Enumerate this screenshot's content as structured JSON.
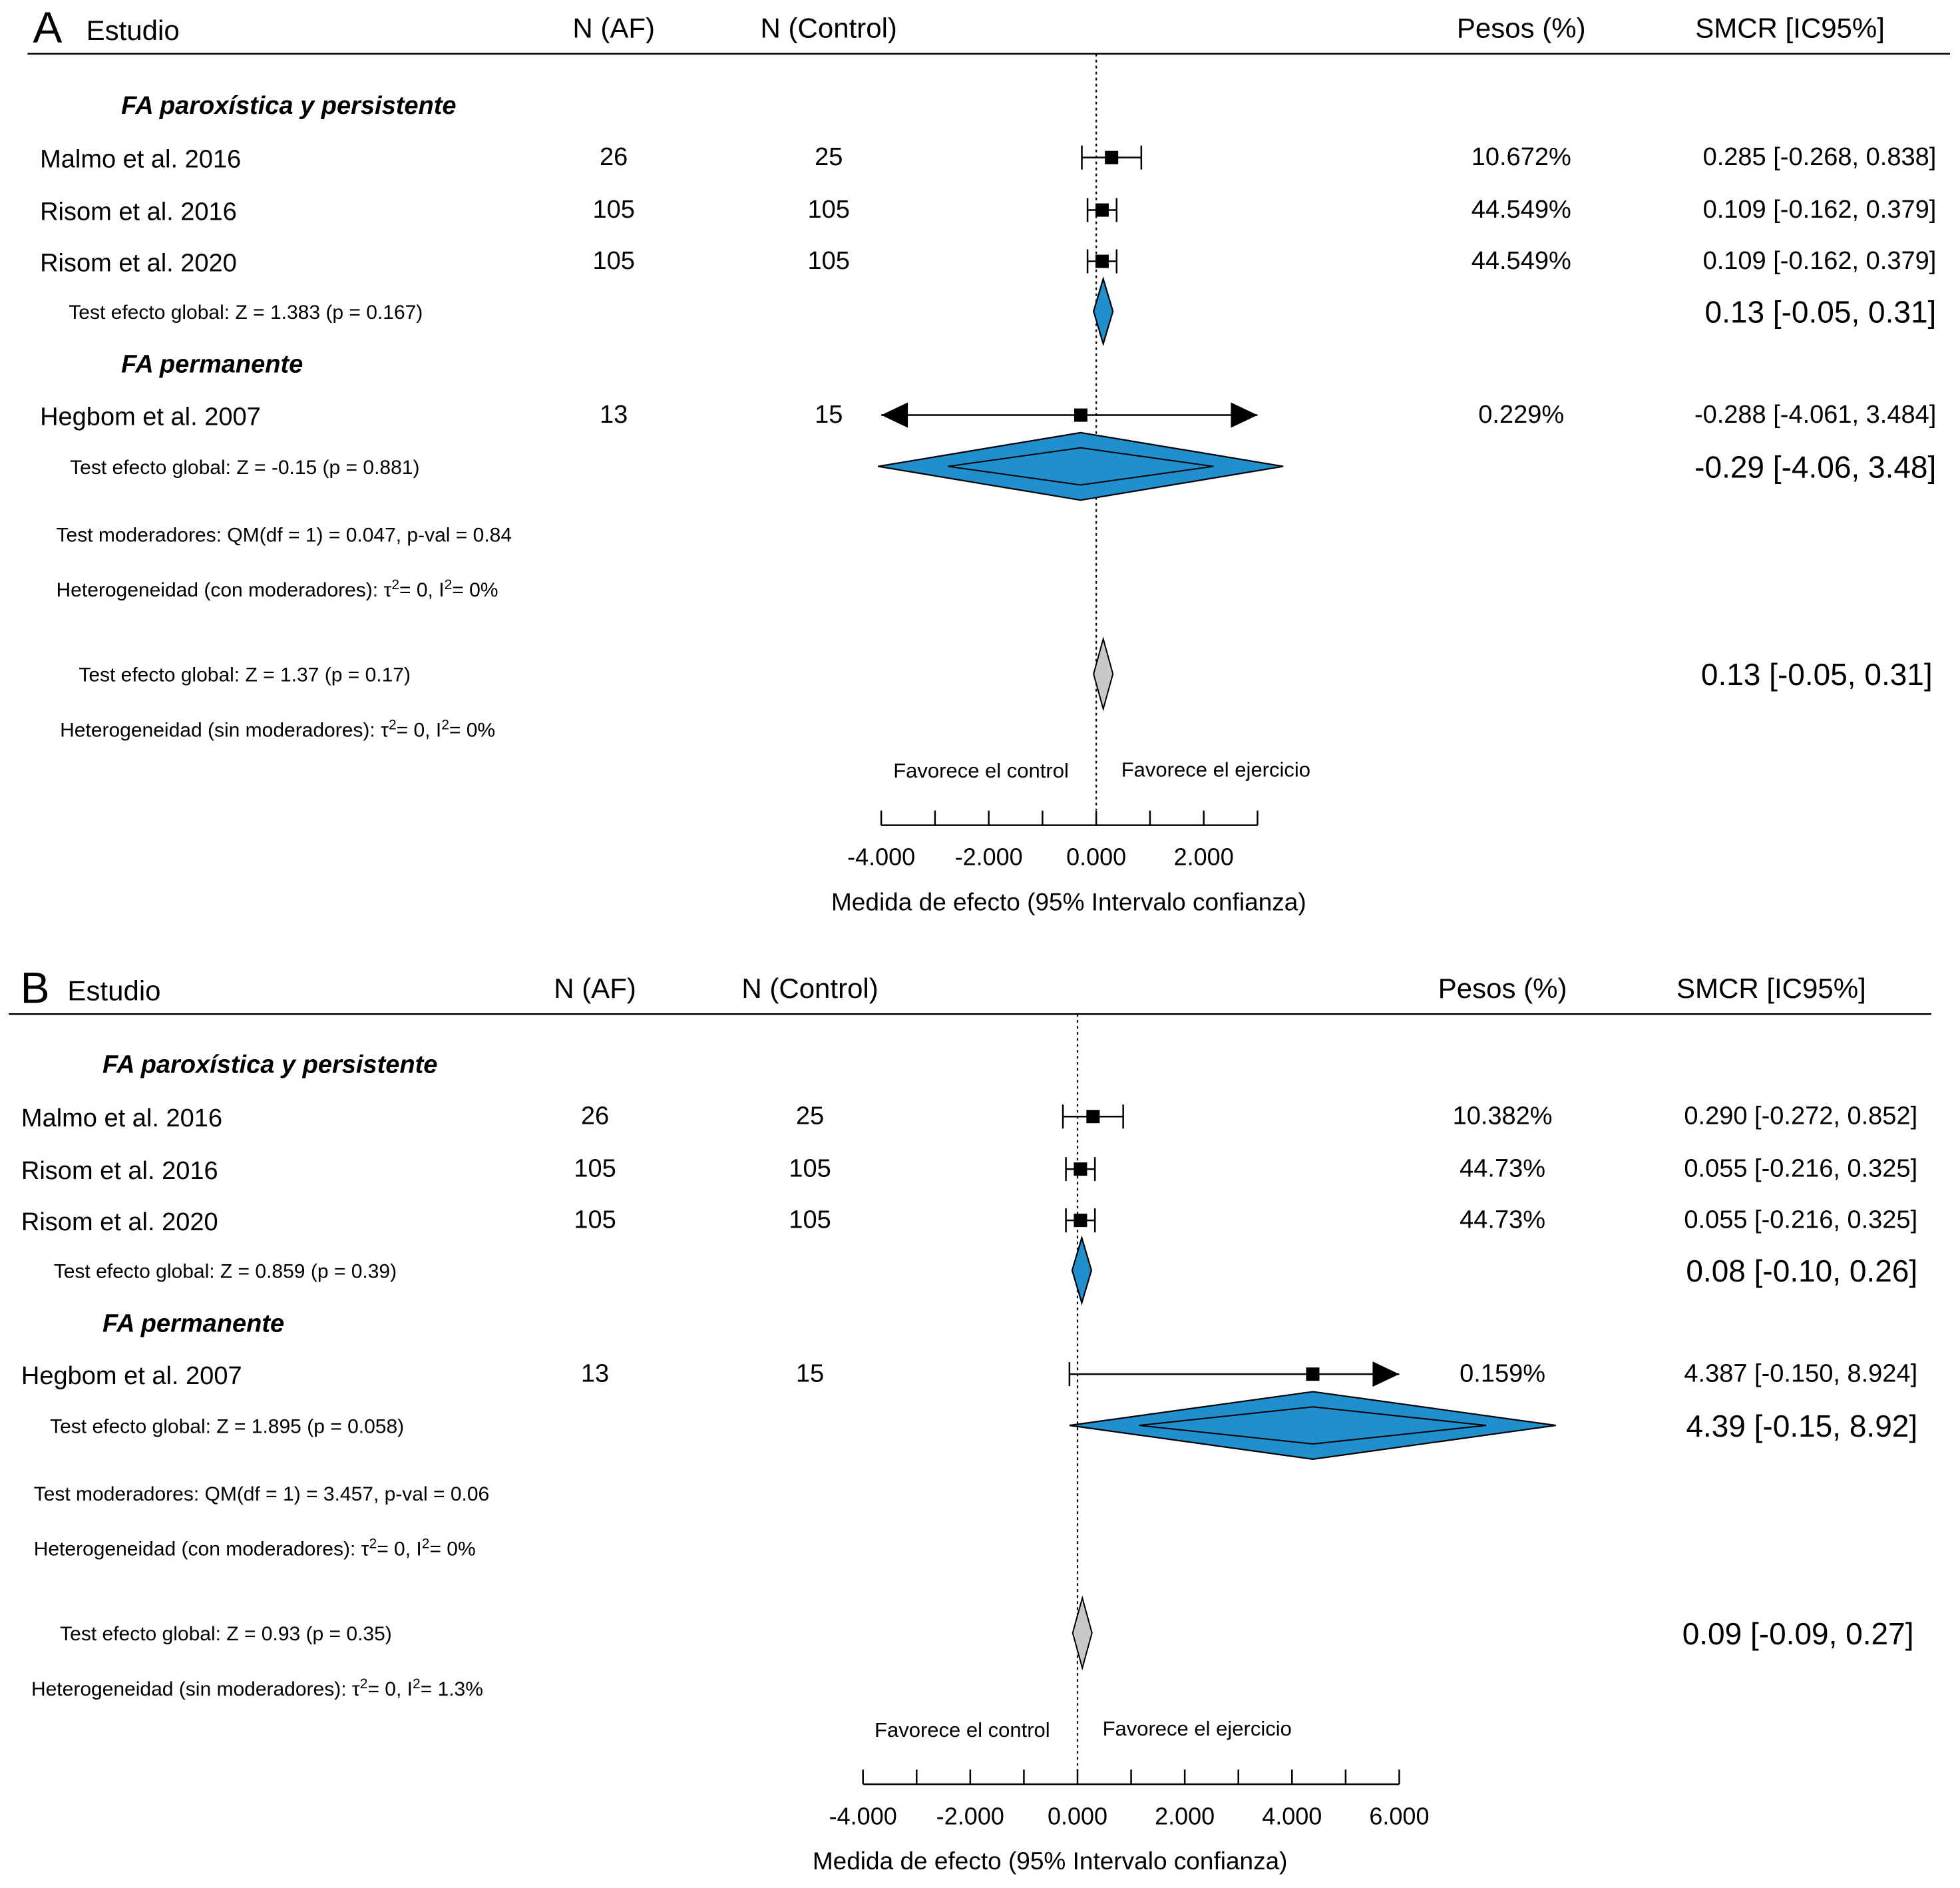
{
  "colors": {
    "diamond": "#1f8fcd",
    "overall_diamond": "#c8c8c8",
    "marks": "#000000"
  },
  "header": {
    "study": "Estudio",
    "n_af": "N (AF)",
    "n_control": "N (Control)",
    "weights": "Pesos (%)",
    "smcr": "SMCR [IC95%]"
  },
  "chart_data": [
    {
      "type": "forest",
      "panel": "A",
      "xlim": [
        -4.0,
        3.0
      ],
      "ticks": [
        -4.0,
        -2.0,
        0.0,
        2.0
      ],
      "tick_labels": [
        "-4.000",
        "-2.000",
        "0.000",
        "2.000"
      ],
      "xlabel": "Medida de efecto (95% Intervalo confianza)",
      "favors_left": "Favorece el control",
      "favors_right": "Favorece el ejercicio",
      "subgroups": [
        {
          "label": "FA paroxística y persistente",
          "studies": [
            {
              "study": "Malmo et al. 2016",
              "n_af": "26",
              "n_control": "25",
              "weight": "10.672%",
              "ci_text": "0.285 [-0.268, 0.838]",
              "est": 0.285,
              "lo": -0.268,
              "hi": 0.838
            },
            {
              "study": "Risom et al. 2016",
              "n_af": "105",
              "n_control": "105",
              "weight": "44.549%",
              "ci_text": "0.109 [-0.162, 0.379]",
              "est": 0.109,
              "lo": -0.162,
              "hi": 0.379
            },
            {
              "study": "Risom et al. 2020",
              "n_af": "105",
              "n_control": "105",
              "weight": "44.549%",
              "ci_text": "0.109 [-0.162, 0.379]",
              "est": 0.109,
              "lo": -0.162,
              "hi": 0.379
            }
          ],
          "test": "Test efecto global: Z = 1.383 (p = 0.167)",
          "summary_text": "0.13 [-0.05, 0.31]",
          "summary": {
            "est": 0.13,
            "lo": -0.05,
            "hi": 0.31
          }
        },
        {
          "label": "FA permanente",
          "studies": [
            {
              "study": "Hegbom et al. 2007",
              "n_af": "13",
              "n_control": "15",
              "weight": "0.229%",
              "ci_text": "-0.288 [-4.061, 3.484]",
              "est": -0.288,
              "lo": -4.061,
              "hi": 3.484
            }
          ],
          "test": "Test efecto global: Z = -0.15 (p = 0.881)",
          "summary_text": "-0.29 [-4.06, 3.48]",
          "summary": {
            "est": -0.29,
            "lo": -4.06,
            "hi": 3.48
          }
        }
      ],
      "moderators_test": "Test moderadores:  QM(df = 1) = 0.047, p-val = 0.84",
      "heterogeneity_with": {
        "prefix": "Heterogeneidad (con moderadores): ",
        "tau": "τ",
        "tau_val": "=  0, ",
        "i": "I",
        "i_val": "= 0%"
      },
      "overall_test": "Test efecto global: Z = 1.37 (p = 0.17)",
      "heterogeneity_without": {
        "prefix": "Heterogeneidad (sin moderadores): ",
        "tau": "τ",
        "tau_val": "=  0, ",
        "i": "I",
        "i_val": "= 0%"
      },
      "overall_text": "0.13 [-0.05, 0.31]",
      "overall": {
        "est": 0.13,
        "lo": -0.05,
        "hi": 0.31
      }
    },
    {
      "type": "forest",
      "panel": "B",
      "xlim": [
        -4.0,
        6.0
      ],
      "ticks": [
        -4.0,
        -2.0,
        0.0,
        2.0,
        4.0,
        6.0
      ],
      "tick_labels": [
        "-4.000",
        "-2.000",
        "0.000",
        "2.000",
        "4.000",
        "6.000"
      ],
      "xlabel": "Medida de efecto (95% Intervalo confianza)",
      "favors_left": "Favorece el control",
      "favors_right": "Favorece el ejercicio",
      "subgroups": [
        {
          "label": "FA paroxística y persistente",
          "studies": [
            {
              "study": "Malmo et al. 2016",
              "n_af": "26",
              "n_control": "25",
              "weight": "10.382%",
              "ci_text": "0.290 [-0.272, 0.852]",
              "est": 0.29,
              "lo": -0.272,
              "hi": 0.852
            },
            {
              "study": "Risom et al. 2016",
              "n_af": "105",
              "n_control": "105",
              "weight": "44.73%",
              "ci_text": "0.055 [-0.216, 0.325]",
              "est": 0.055,
              "lo": -0.216,
              "hi": 0.325
            },
            {
              "study": "Risom et al. 2020",
              "n_af": "105",
              "n_control": "105",
              "weight": "44.73%",
              "ci_text": "0.055 [-0.216, 0.325]",
              "est": 0.055,
              "lo": -0.216,
              "hi": 0.325
            }
          ],
          "test": "Test efecto global: Z = 0.859 (p = 0.39)",
          "summary_text": "0.08 [-0.10, 0.26]",
          "summary": {
            "est": 0.08,
            "lo": -0.1,
            "hi": 0.26
          }
        },
        {
          "label": "FA permanente",
          "studies": [
            {
              "study": "Hegbom et al. 2007",
              "n_af": "13",
              "n_control": "15",
              "weight": "0.159%",
              "ci_text": "4.387 [-0.150, 8.924]",
              "est": 4.387,
              "lo": -0.15,
              "hi": 8.924
            }
          ],
          "test": "Test efecto global: Z = 1.895 (p = 0.058)",
          "summary_text": "4.39 [-0.15, 8.92]",
          "summary": {
            "est": 4.39,
            "lo": -0.15,
            "hi": 8.92
          }
        }
      ],
      "moderators_test": "Test moderadores:  QM(df = 1) = 3.457, p-val = 0.06",
      "heterogeneity_with": {
        "prefix": "Heterogeneidad (con moderadores): ",
        "tau": "τ",
        "tau_val": "=  0, ",
        "i": "I",
        "i_val": "= 0%"
      },
      "overall_test": "Test efecto global: Z = 0.93 (p = 0.35)",
      "heterogeneity_without": {
        "prefix": "Heterogeneidad (sin moderadores): ",
        "tau": "τ",
        "tau_val": "=  0, ",
        "i": "I",
        "i_val": "= 1.3%"
      },
      "overall_text": "0.09 [-0.09, 0.27]",
      "overall": {
        "est": 0.09,
        "lo": -0.09,
        "hi": 0.27
      }
    }
  ]
}
